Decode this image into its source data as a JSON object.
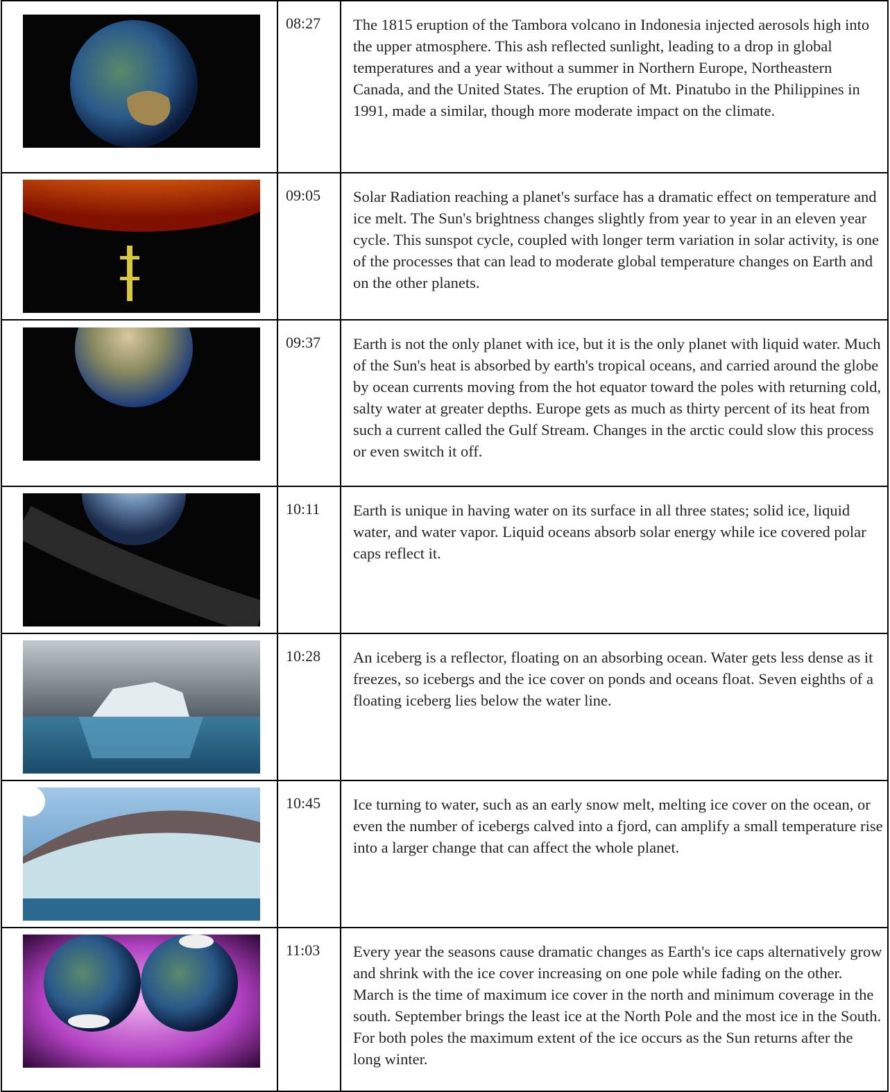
{
  "table": {
    "rows": [
      [
        "08:27",
        "The 1815 eruption of the Tambora volcano in Indonesia injected aerosols high into the upper atmosphere. This ash reflected sunlight, leading to a drop in global temperatures and a year without a summer in Northern Europe, Northeastern Canada, and the United States. The eruption of Mt. Pinatubo in the Philippines in 1991, made a similar, though more moderate impact on the climate."
      ],
      [
        "09:05",
        "Solar Radiation reaching a planet's surface has a dramatic effect on temperature and ice melt. The Sun's brightness changes slightly from year to year in an eleven year cycle. This sunspot cycle, coupled with longer term variation in solar activity, is one of the processes that can lead to moderate global temperature changes on Earth and on the other planets."
      ],
      [
        "09:37",
        "Earth is not the only planet with ice, but it is the only planet with liquid water. Much of the Sun's heat is absorbed by earth's tropical oceans, and carried around the globe by ocean currents moving from the hot equator toward the poles with returning cold, salty water at greater depths. Europe gets as much as thirty percent of its heat from such a current called the Gulf Stream. Changes in the arctic could slow this process or even switch it off."
      ],
      [
        "10:11",
        "Earth is unique in having water on its surface in all three states; solid ice, liquid water, and water vapor. Liquid oceans absorb solar energy while ice covered polar caps reflect it."
      ],
      [
        "10:28",
        "An iceberg is a reflector, floating on an absorbing ocean. Water gets less dense as it freezes, so icebergs and the ice cover on ponds and oceans float. Seven eighths of a floating iceberg lies below the water line."
      ],
      [
        "10:45",
        "Ice turning to water, such as an early snow melt, melting ice cover on the ocean, or even the number of icebergs calved into a fjord, can amplify a small temperature rise into a larger change that can affect the whole planet."
      ],
      [
        "11:03",
        "Every year the seasons cause dramatic changes as Earth's ice caps alternatively grow and shrink with the ice cover increasing on one pole while fading on the other. March is the time of maximum ice cover in the north and minimum coverage in the south. September brings the least ice at the North Pole and the most ice in the South. For both poles the maximum extent of the ice occurs as the Sun returns after the long winter."
      ]
    ]
  }
}
